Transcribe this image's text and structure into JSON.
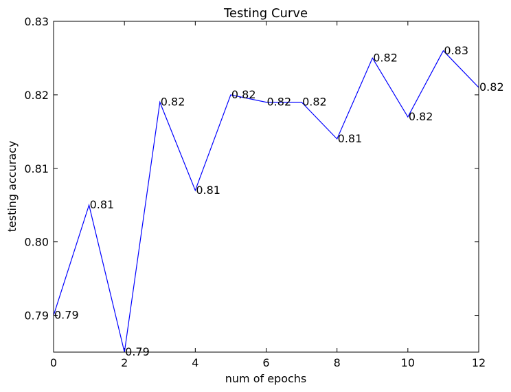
{
  "chart_data": {
    "type": "line",
    "title": "Testing Curve",
    "xlabel": "num of epochs",
    "ylabel": "testing accuracy",
    "xlim": [
      0,
      12
    ],
    "ylim": [
      0.785,
      0.83
    ],
    "xticks": [
      0,
      2,
      4,
      6,
      8,
      10,
      12
    ],
    "xtick_labels": [
      "0",
      "2",
      "4",
      "6",
      "8",
      "10",
      "12"
    ],
    "yticks": [
      0.79,
      0.8,
      0.81,
      0.82,
      0.83
    ],
    "ytick_labels": [
      "0.79",
      "0.80",
      "0.81",
      "0.82",
      "0.83"
    ],
    "grid": false,
    "line_color": "#0000ff",
    "series": [
      {
        "x": [
          0,
          1,
          2,
          3,
          4,
          5,
          6,
          7,
          8,
          9,
          10,
          11,
          12
        ],
        "values": [
          0.79,
          0.805,
          0.785,
          0.819,
          0.807,
          0.82,
          0.819,
          0.819,
          0.814,
          0.825,
          0.817,
          0.826,
          0.821
        ],
        "labels": [
          "0.79",
          "0.81",
          "0.79",
          "0.82",
          "0.81",
          "0.82",
          "0.82",
          "0.82",
          "0.81",
          "0.82",
          "0.82",
          "0.83",
          "0.82"
        ]
      }
    ]
  }
}
